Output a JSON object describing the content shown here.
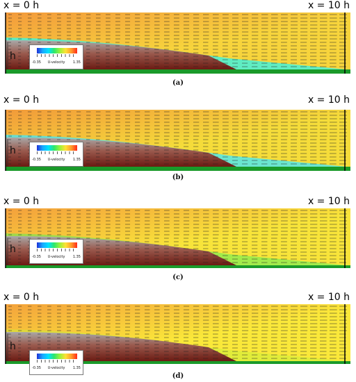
{
  "panels": [
    {
      "id": "a",
      "caption": "(a)",
      "x_start_label": "x = 0 h",
      "x_end_label": "x = 10 h",
      "step_label": "h",
      "top_color": "#f39a3c",
      "mid_color": "#f7d43c",
      "band_color": "#4ff0d0",
      "band_width": 1.0
    },
    {
      "id": "b",
      "caption": "(b)",
      "x_start_label": "x = 0 h",
      "x_end_label": "x = 10 h",
      "step_label": "h",
      "top_color": "#f29a3a",
      "mid_color": "#f5dc3a",
      "band_color": "#3fe8ff",
      "band_width": 0.75
    },
    {
      "id": "c",
      "caption": "(c)",
      "x_start_label": "x = 0 h",
      "x_end_label": "x = 10 h",
      "step_label": "h",
      "top_color": "#f4a03c",
      "mid_color": "#f8e43a",
      "band_color": "#58f05a",
      "band_width": 0.35
    },
    {
      "id": "d",
      "caption": "(d)",
      "x_start_label": "x = 0 h",
      "x_end_label": "x = 10 h",
      "step_label": "h",
      "top_color": "#f4a23c",
      "mid_color": "#fae83a",
      "band_color": "#c4f23a",
      "band_width": 0.2
    }
  ],
  "legend": {
    "min": "-0.35",
    "max": "1.35",
    "name": "U-velocity"
  },
  "colors": {
    "step_gray": "#a9a9a9",
    "step_dark": "#6b1a12",
    "floor_green": "#1a9a2a",
    "arrow": "#222222"
  }
}
